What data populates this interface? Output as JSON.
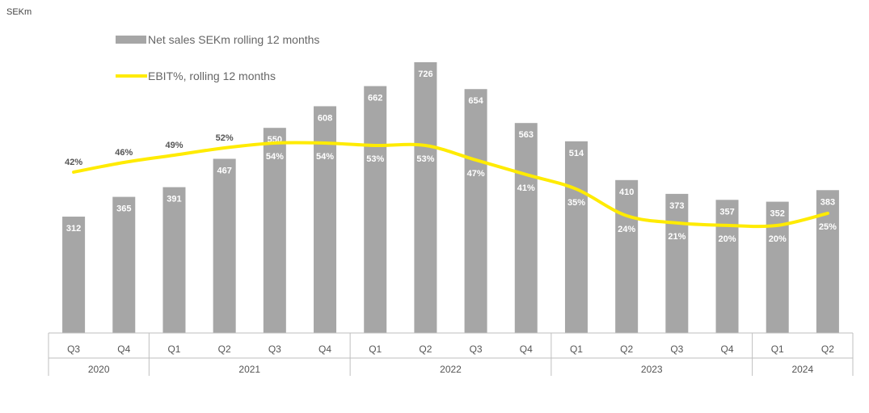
{
  "unit_label": "SEKm",
  "chart_data": {
    "type": "bar+line",
    "categories": [
      "Q3",
      "Q4",
      "Q1",
      "Q2",
      "Q3",
      "Q4",
      "Q1",
      "Q2",
      "Q3",
      "Q4",
      "Q1",
      "Q2",
      "Q3",
      "Q4",
      "Q1",
      "Q2"
    ],
    "years": [
      {
        "label": "2020",
        "span": 2
      },
      {
        "label": "2021",
        "span": 4
      },
      {
        "label": "2022",
        "span": 4
      },
      {
        "label": "2023",
        "span": 4
      },
      {
        "label": "2024",
        "span": 2
      }
    ],
    "series": [
      {
        "name": "Net sales SEKm rolling 12 months",
        "type": "bar",
        "color": "#a6a6a6",
        "values": [
          312,
          365,
          391,
          467,
          550,
          608,
          662,
          726,
          654,
          563,
          514,
          410,
          373,
          357,
          352,
          383
        ],
        "labels": [
          "312",
          "365",
          "391",
          "467",
          "550",
          "608",
          "662",
          "726",
          "654",
          "563",
          "514",
          "410",
          "373",
          "357",
          "352",
          "383"
        ]
      },
      {
        "name": "EBIT%, rolling 12 months",
        "type": "line",
        "color": "#ffeb00",
        "values": [
          42,
          46,
          49,
          52,
          54,
          54,
          53,
          53,
          47,
          41,
          35,
          24,
          21,
          20,
          20,
          25
        ],
        "labels": [
          "42%",
          "46%",
          "49%",
          "52%",
          "54%",
          "54%",
          "53%",
          "53%",
          "47%",
          "41%",
          "35%",
          "24%",
          "21%",
          "20%",
          "20%",
          "25%"
        ]
      }
    ],
    "legend_position": "top-left",
    "grid": false
  }
}
